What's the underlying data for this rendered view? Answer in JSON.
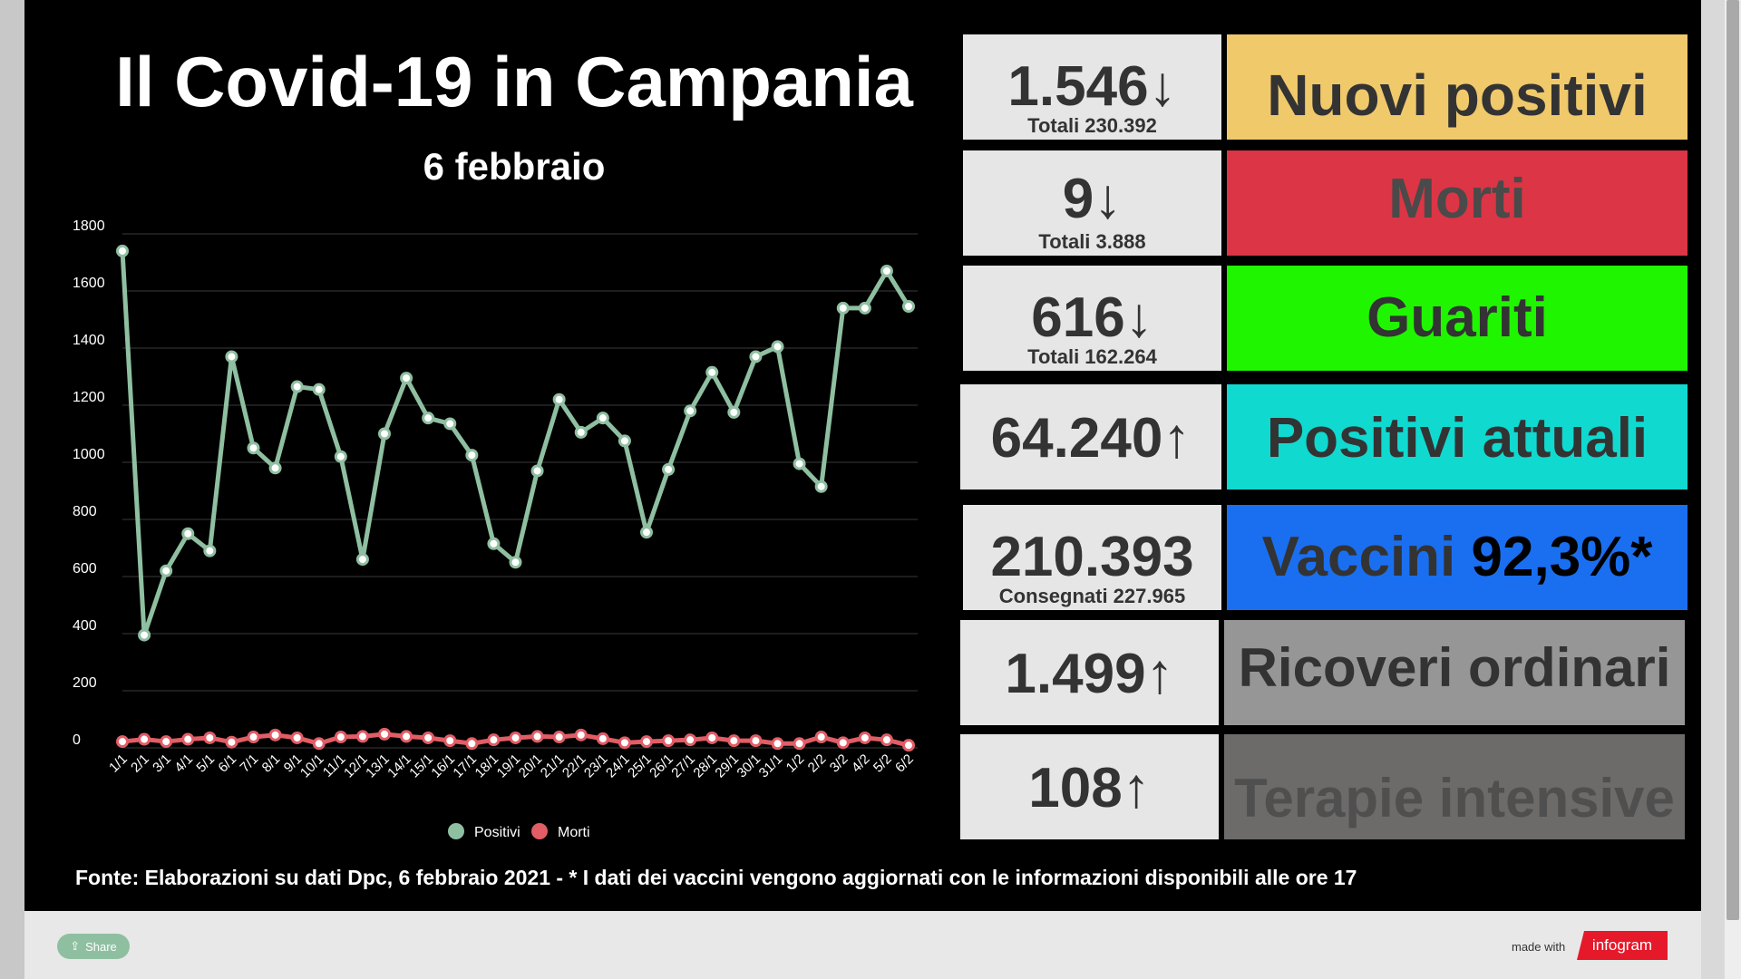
{
  "header": {
    "title": "Il Covid-19 in Campania",
    "date": "6 febbraio"
  },
  "chart_data": {
    "type": "line",
    "categories": [
      "1/1",
      "2/1",
      "3/1",
      "4/1",
      "5/1",
      "6/1",
      "7/1",
      "8/1",
      "9/1",
      "10/1",
      "11/1",
      "12/1",
      "13/1",
      "14/1",
      "15/1",
      "16/1",
      "17/1",
      "18/1",
      "19/1",
      "20/1",
      "21/1",
      "22/1",
      "23/1",
      "24/1",
      "25/1",
      "26/1",
      "27/1",
      "28/1",
      "29/1",
      "30/1",
      "31/1",
      "1/2",
      "2/2",
      "3/2",
      "4/2",
      "5/2",
      "6/2"
    ],
    "series": [
      {
        "name": "Positivi",
        "color": "#8fbfa1",
        "values": [
          1740,
          395,
          620,
          750,
          690,
          1370,
          1050,
          980,
          1265,
          1255,
          1020,
          660,
          1100,
          1295,
          1155,
          1135,
          1025,
          715,
          650,
          970,
          1220,
          1105,
          1155,
          1075,
          755,
          975,
          1180,
          1315,
          1175,
          1370,
          1405,
          995,
          915,
          1540,
          1540,
          1670,
          1546
        ]
      },
      {
        "name": "Morti",
        "color": "#e25d66",
        "values": [
          22,
          30,
          22,
          30,
          35,
          20,
          38,
          45,
          35,
          15,
          38,
          40,
          48,
          40,
          35,
          25,
          15,
          28,
          35,
          40,
          38,
          45,
          32,
          18,
          22,
          25,
          28,
          35,
          25,
          25,
          15,
          15,
          38,
          18,
          35,
          28,
          9
        ]
      }
    ],
    "yticks": [
      0,
      200,
      400,
      600,
      800,
      1000,
      1200,
      1400,
      1600,
      1800
    ],
    "ylim": [
      0,
      1800
    ],
    "grid": true,
    "legend": "bottom"
  },
  "stats": [
    {
      "value": "1.546↓",
      "sub": "Totali 230.392",
      "label": "Nuovi positivi",
      "bg": "#f0c96b",
      "fg": "#333333"
    },
    {
      "value": "9↓",
      "sub": "Totali 3.888",
      "label": "Morti",
      "bg": "#dc3545",
      "fg": "#4a4a4a"
    },
    {
      "value": "616↓",
      "sub": "Totali 162.264",
      "label": "Guariti",
      "bg": "#20f500",
      "fg": "#333333"
    },
    {
      "value": "64.240↑",
      "sub": "",
      "label": "Positivi attuali",
      "bg": "#10d9d0",
      "fg": "#333333"
    },
    {
      "value": "210.393",
      "sub": "Consegnati 227.965",
      "label": "Vaccini",
      "label_pct": "92,3%*",
      "bg": "#1a6ff0",
      "fg": "#333333"
    },
    {
      "value": "1.499↑",
      "sub": "",
      "label": "Ricoveri ordinari",
      "bg": "#969696",
      "fg": "#333333"
    },
    {
      "value": "108↑",
      "sub": "",
      "label": "Terapie intensive",
      "bg": "#6d6a6a",
      "fg": "#4f4f4f"
    }
  ],
  "footer": {
    "note": "Fonte: Elaborazioni su dati Dpc, 6 febbraio 2021 - * I dati dei vaccini vengono aggiornati con le informazioni disponibili alle ore 17",
    "share_label": "Share",
    "made_with": "made with",
    "brand": "infogram"
  }
}
